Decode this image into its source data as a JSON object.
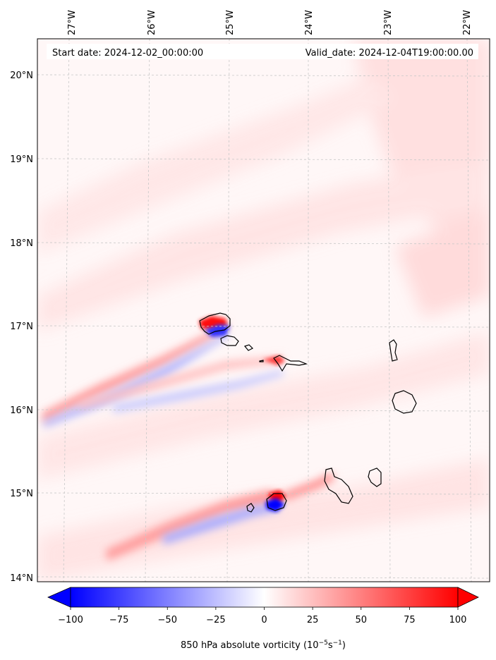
{
  "chart_data": {
    "type": "heatmap",
    "title": "850 hPa absolute vorticity",
    "start_date_text": "Start date: 2024-12-02_00:00:00",
    "valid_date_text": "Valid_date: 2024-12-04T19:00:00.00",
    "lon_range": [
      -27.3,
      -21.75
    ],
    "lat_range": [
      13.95,
      20.45
    ],
    "lon_ticks": [
      "27°W",
      "26°W",
      "25°W",
      "24°W",
      "23°W",
      "22°W"
    ],
    "lon_tick_values": [
      -27,
      -26,
      -25,
      -24,
      -23,
      -22
    ],
    "lat_ticks": [
      "20°N",
      "19°N",
      "18°N",
      "17°N",
      "16°N",
      "15°N",
      "14°N"
    ],
    "lat_tick_values": [
      20,
      19,
      18,
      17,
      16,
      15,
      14
    ],
    "colorbar": {
      "label_main": "850 hPa absolute vorticity (10",
      "label_exp1": "−5",
      "label_mid": "s",
      "label_exp2": "−1",
      "label_end": ")",
      "range": [
        -100,
        100
      ],
      "ticks": [
        "−100",
        "−75",
        "−50",
        "−25",
        "0",
        "25",
        "50",
        "75",
        "100"
      ],
      "tick_values": [
        -100,
        -75,
        -50,
        -25,
        0,
        25,
        50,
        75,
        100
      ],
      "colormap": "bwr",
      "extend": "both"
    },
    "features": [
      {
        "name": "vorticity-streak-north",
        "from": [
          -27.2,
          15.9
        ],
        "to": [
          -24.8,
          17.0
        ],
        "positive_max": 80,
        "negative_min": -60
      },
      {
        "name": "vorticity-streak-middle",
        "from": [
          -26.0,
          16.0
        ],
        "to": [
          -23.8,
          16.5
        ],
        "positive_max": 50,
        "negative_min": -40
      },
      {
        "name": "vorticity-streak-south",
        "from": [
          -26.0,
          14.3
        ],
        "to": [
          -23.9,
          15.0
        ],
        "positive_max": 100,
        "negative_min": -100
      }
    ]
  },
  "colors": {
    "negative": "#0000ff",
    "neutral": "#ffffff",
    "positive": "#ff0000",
    "background_tint": "#fff0f0",
    "coast": "#000000",
    "grid": "#c8c8c8"
  }
}
